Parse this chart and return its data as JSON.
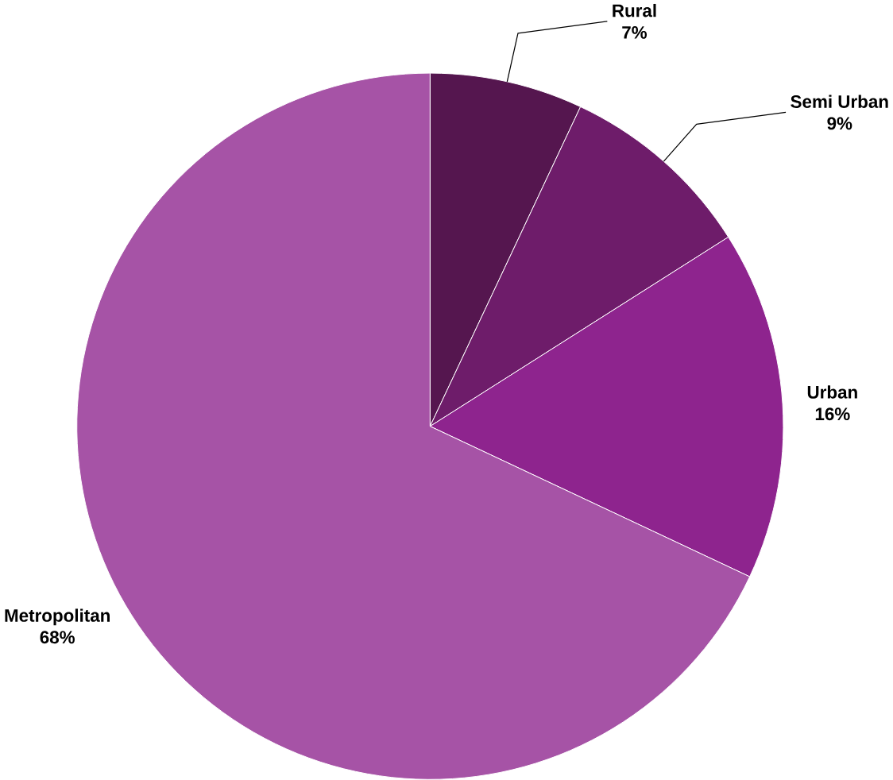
{
  "chart_data": {
    "type": "pie",
    "categories": [
      "Rural",
      "Semi Urban",
      "Urban",
      "Metropolitan"
    ],
    "values": [
      7,
      9,
      16,
      68
    ],
    "value_labels": [
      "7%",
      "9%",
      "16%",
      "68%"
    ],
    "colors": [
      "#55164f",
      "#6e1c6a",
      "#8e248e",
      "#a653a6"
    ]
  }
}
